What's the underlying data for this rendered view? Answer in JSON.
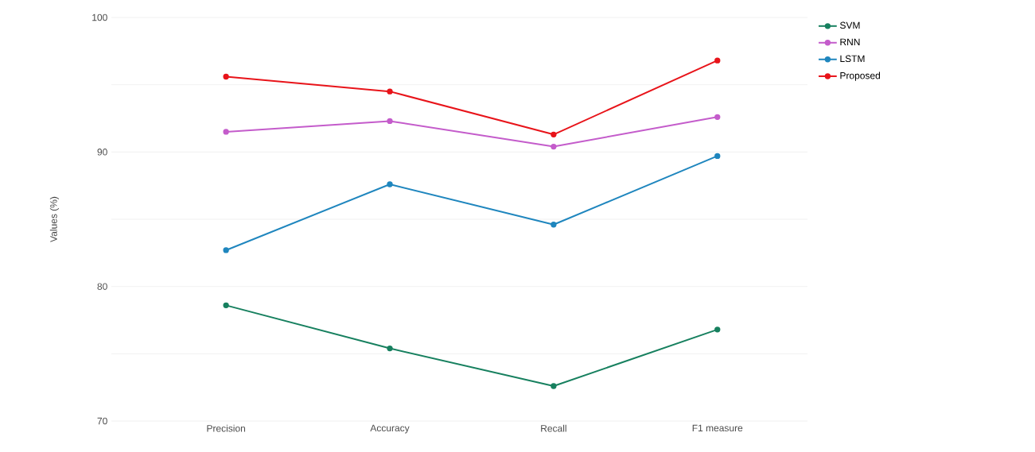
{
  "chart_data": {
    "type": "line",
    "ylabel": "Values (%)",
    "categories": [
      "Precision",
      "Accuracy",
      "Recall",
      "F1 measure"
    ],
    "series": [
      {
        "name": "SVM",
        "color": "#17805f",
        "values": [
          78.6,
          75.4,
          72.6,
          76.8
        ]
      },
      {
        "name": "RNN",
        "color": "#c45ccb",
        "values": [
          91.5,
          92.3,
          90.4,
          92.6
        ]
      },
      {
        "name": "LSTM",
        "color": "#1f86be",
        "values": [
          82.7,
          87.6,
          84.6,
          89.7
        ]
      },
      {
        "name": "Proposed",
        "color": "#e8141a",
        "values": [
          95.6,
          94.5,
          91.3,
          96.8
        ]
      }
    ],
    "ylim": [
      70,
      100
    ],
    "yticks": [
      70,
      {
        "value": 75,
        "label": null
      },
      80,
      {
        "value": 85,
        "label": null
      },
      90,
      {
        "value": 95,
        "label": null
      },
      100
    ],
    "grid": "y",
    "legend": "top right",
    "marker": "circle",
    "line_style": "solid"
  }
}
